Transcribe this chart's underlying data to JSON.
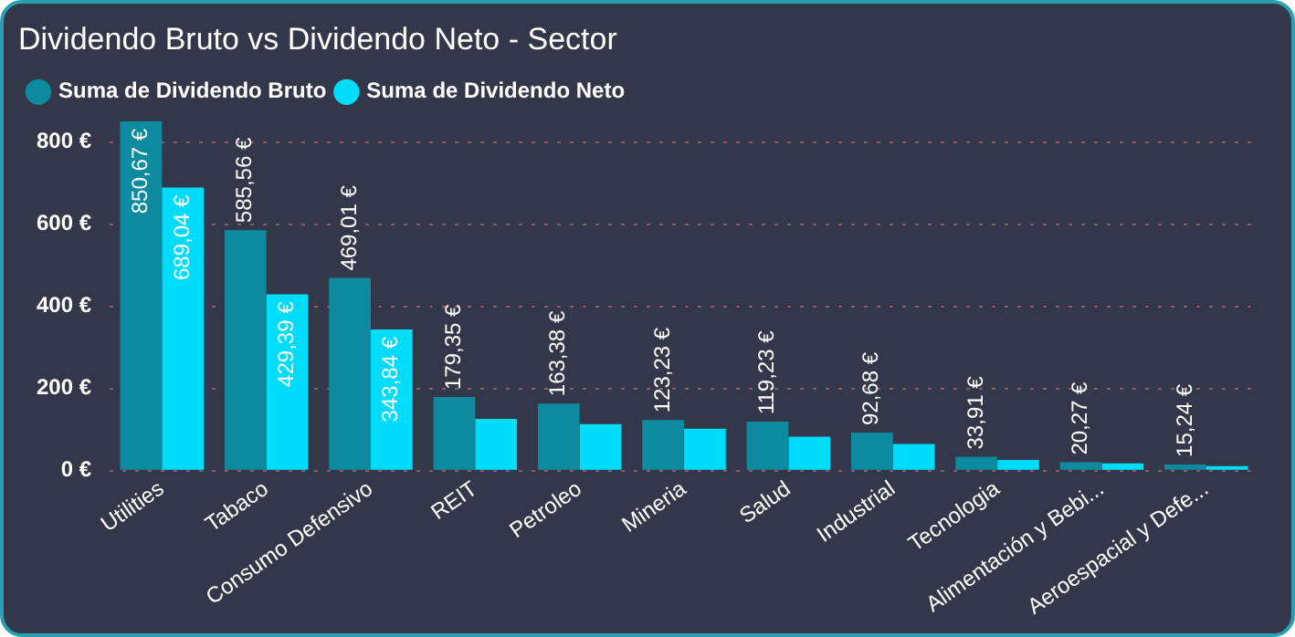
{
  "chart_data": {
    "type": "bar",
    "title": "Dividendo Bruto vs Dividendo Neto - Sector",
    "categories": [
      "Utilities",
      "Tabaco",
      "Consumo Defensivo",
      "REIT",
      "Petroleo",
      "Mineria",
      "Salud",
      "Industrial",
      "Tecnologia",
      "Alimentación y Bebi...",
      "Aeroespacial y Defe..."
    ],
    "series": [
      {
        "name": "Suma de Dividendo Bruto",
        "color": "#0e8a9e",
        "values": [
          850.67,
          585.56,
          469.01,
          179.35,
          163.38,
          123.23,
          119.23,
          92.68,
          33.91,
          20.27,
          15.24
        ],
        "value_labels": [
          "850,67 €",
          "585,56 €",
          "469,01 €",
          "179,35 €",
          "163,38 €",
          "123,23 €",
          "119,23 €",
          "92,68 €",
          "33,91 €",
          "20,27 €",
          "15,24 €"
        ]
      },
      {
        "name": "Suma de Dividendo Neto",
        "color": "#00dcfa",
        "values": [
          689.04,
          429.39,
          343.84,
          126,
          113,
          102,
          83,
          65,
          26,
          18,
          11
        ],
        "value_labels": [
          "689,04 €",
          "429,39 €",
          "343,84 €",
          null,
          null,
          null,
          null,
          null,
          null,
          null,
          null
        ]
      }
    ],
    "ylim": [
      0,
      850.67
    ],
    "yticks": [
      {
        "value": 0,
        "label": "0 €"
      },
      {
        "value": 200,
        "label": "200 €"
      },
      {
        "value": 400,
        "label": "400 €"
      },
      {
        "value": 600,
        "label": "600 €"
      },
      {
        "value": 800,
        "label": "800 €"
      }
    ],
    "grid": "y",
    "legend": "top left",
    "marker": "circle"
  }
}
